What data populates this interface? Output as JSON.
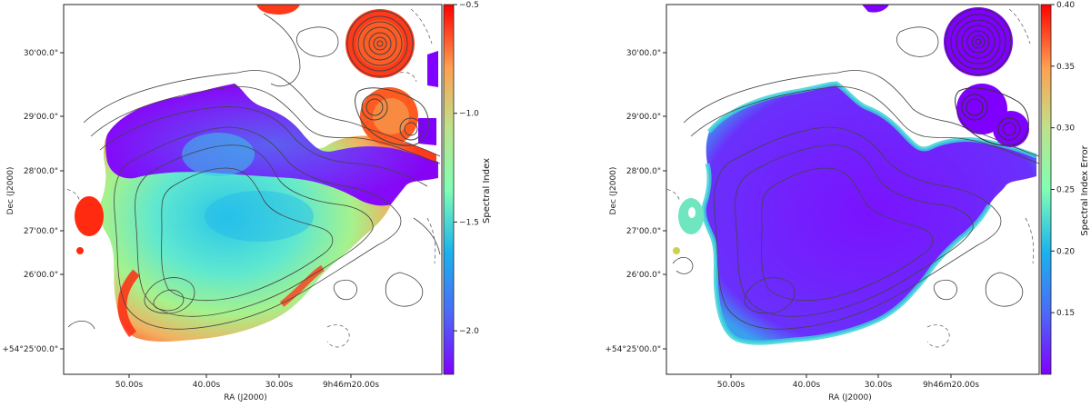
{
  "chart_data": [
    {
      "type": "heatmap",
      "xlabel": "RA (J2000)",
      "ylabel": "Dec (J2000)",
      "x_ticks": [
        "50.00s",
        "40.00s",
        "30.00s",
        "9h46m20.00s"
      ],
      "y_ticks": [
        "+54°25'00.0\"",
        "26'00.0\"",
        "27'00.0\"",
        "28'00.0\"",
        "29'00.0\"",
        "30'00.0\""
      ],
      "colorbar": {
        "label": "Spectral Index",
        "range": [
          -2.2,
          -0.5
        ],
        "ticks": [
          -0.5,
          -1.0,
          -1.5,
          -2.0
        ],
        "tick_labels": [
          "−0.5",
          "−1.0",
          "−1.5",
          "−2.0"
        ],
        "cmap": "rainbow"
      },
      "overlay": "radio intensity contours (solid positive, dashed negative)"
    },
    {
      "type": "heatmap",
      "xlabel": "RA (J2000)",
      "ylabel": "Dec (J2000)",
      "x_ticks": [
        "50.00s",
        "40.00s",
        "30.00s",
        "9h46m20.00s"
      ],
      "y_ticks": [
        "+54°25'00.0\"",
        "26'00.0\"",
        "27'00.0\"",
        "28'00.0\"",
        "29'00.0\"",
        "30'00.0\""
      ],
      "colorbar": {
        "label": "Spectral Index Error",
        "range": [
          0.1,
          0.4
        ],
        "ticks": [
          0.15,
          0.2,
          0.25,
          0.3,
          0.35,
          0.4
        ],
        "tick_labels": [
          "0.15",
          "0.20",
          "0.25",
          "0.30",
          "0.35",
          "0.40"
        ],
        "cmap": "rainbow"
      },
      "overlay": "radio intensity contours (solid positive, dashed negative)"
    }
  ],
  "colors": {
    "rainbow_low": "#8000ff",
    "rainbow_high": "#ff0000",
    "contour": "#444444"
  }
}
